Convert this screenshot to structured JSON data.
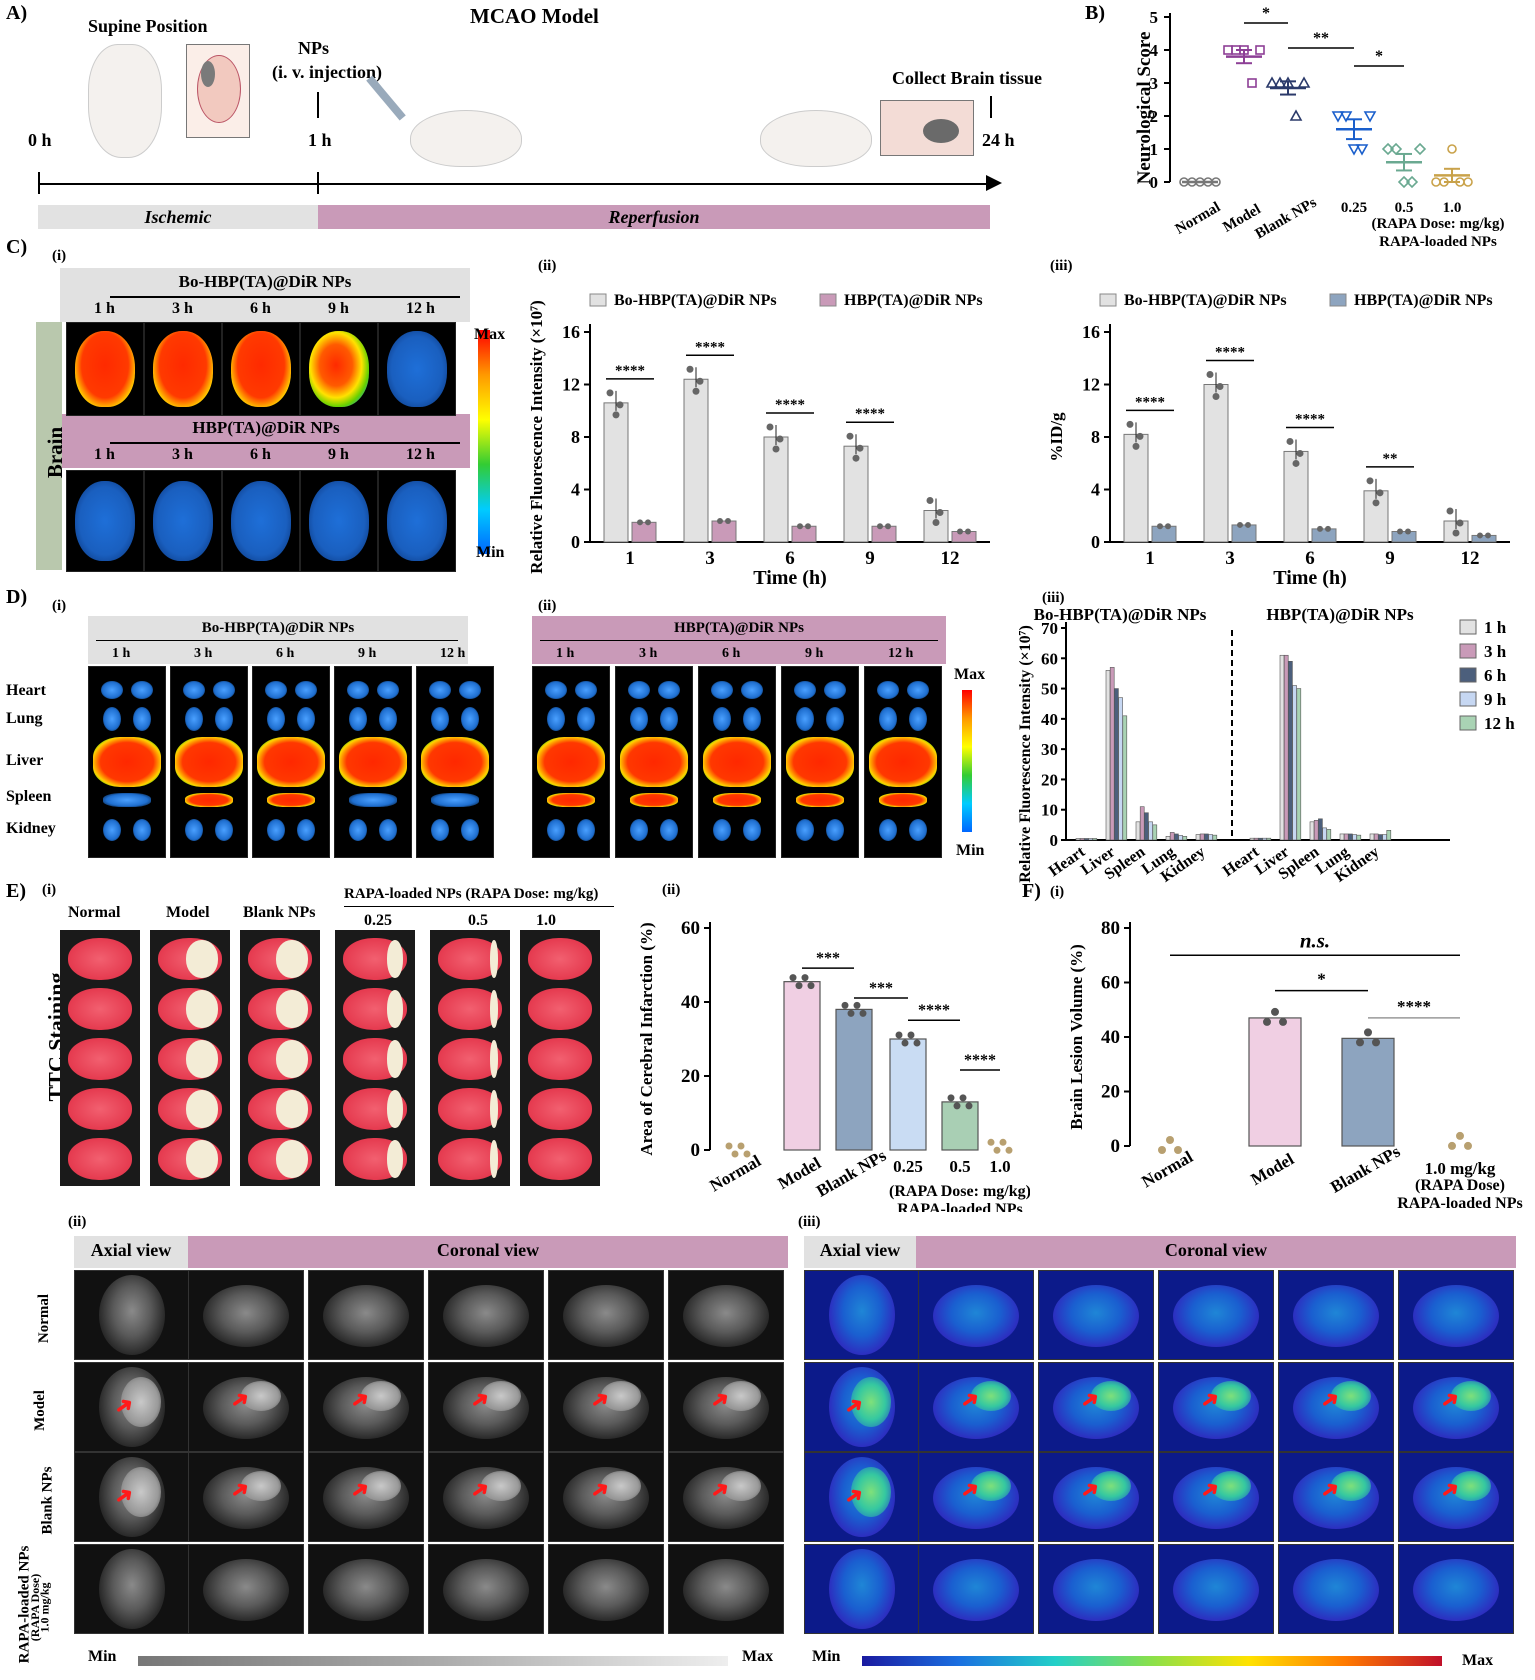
{
  "panelA": {
    "label": "A)",
    "title": "MCAO Model",
    "supine": "Supine Position",
    "nps": "NPs",
    "injection": "(i. v. injection)",
    "collect": "Collect Brain tissue",
    "t0": "0 h",
    "t1": "1 h",
    "t24": "24 h",
    "ischemic": "Ischemic",
    "reperfusion": "Reperfusion"
  },
  "panelB": {
    "label": "B)",
    "ylabel": "Neurological Score",
    "categories": [
      "Normal",
      "Model",
      "Blank NPs",
      "0.25",
      "0.5",
      "1.0"
    ],
    "group_note": "(RAPA Dose: mg/kg)",
    "group_name": "RAPA-loaded NPs",
    "sig": [
      "*",
      "**",
      "*"
    ]
  },
  "panelC": {
    "label": "C)",
    "i": "(i)",
    "ii": "(ii)",
    "iii": "(iii)",
    "bo": "Bo-HBP(TA)@DiR NPs",
    "hbp": "HBP(TA)@DiR NPs",
    "times": [
      "1 h",
      "3 h",
      "6 h",
      "9 h",
      "12 h"
    ],
    "brain": "Brain",
    "max": "Max",
    "min": "Min",
    "ii_ylabel": "Relative Fluorescence Intensity (×10⁷)",
    "iii_ylabel": "%ID/g",
    "xlabel": "Time (h)"
  },
  "panelD": {
    "label": "D)",
    "i": "(i)",
    "ii": "(ii)",
    "iii": "(iii)",
    "organs": [
      "Heart",
      "Lung",
      "Liver",
      "Spleen",
      "Kidney"
    ],
    "legend": [
      "1 h",
      "3 h",
      "6 h",
      "9 h",
      "12 h"
    ],
    "ylabel": "Relative Fluorescence Intensity (×10⁷)",
    "max": "Max",
    "min": "Min"
  },
  "panelE": {
    "label": "E)",
    "i": "(i)",
    "ii": "(ii)",
    "groups": [
      "Normal",
      "Model",
      "Blank NPs"
    ],
    "rapa_header": "RAPA-loaded NPs (RAPA Dose: mg/kg)",
    "doses": [
      "0.25",
      "0.5",
      "1.0"
    ],
    "ttc": "TTC Staining",
    "ii_ylabel": "Area of Cerebral Infarction (%)",
    "categories": [
      "Normal",
      "Model",
      "Blank NPs",
      "0.25",
      "0.5",
      "1.0"
    ],
    "group_note": "(RAPA Dose: mg/kg)",
    "group_name": "RAPA-loaded NPs",
    "sig": [
      "***",
      "***",
      "****",
      "****"
    ]
  },
  "panelF": {
    "label": "F)",
    "i": "(i)",
    "ylabel": "Brain Lesion Volume (%)",
    "categories": [
      "Normal",
      "Model",
      "Blank NPs",
      "1.0 mg/kg"
    ],
    "dose_note": "(RAPA Dose)",
    "group_name": "RAPA-loaded NPs",
    "ns": "n.s.",
    "sig": [
      "*",
      "****"
    ],
    "ii": "(ii)",
    "iii": "(iii)",
    "axial": "Axial view",
    "coronal": "Coronal view",
    "rows": [
      "Normal",
      "Model",
      "Blank NPs",
      "RAPA-loaded NPs"
    ],
    "row4_sub": "(RAPA Dose)",
    "row4_sub2": "1.0 mg/kg",
    "min": "Min",
    "max": "Max"
  },
  "colors": {
    "pink": "#c99ab8",
    "grey": "#dcdcdc",
    "blue": "#8da4bf",
    "light_blue": "#c9dcf3",
    "green": "#9cc7a8",
    "gold": "#c9a24a",
    "purple": "#8d3f96"
  },
  "chart_data": [
    {
      "type": "scatter",
      "title": "",
      "ylabel": "Neurological Score",
      "categories": [
        "Normal",
        "Model",
        "Blank NPs",
        "0.25",
        "0.5",
        "1.0"
      ],
      "ylim": [
        0,
        5
      ],
      "means": [
        0,
        3.8,
        2.85,
        1.6,
        0.6,
        0.2
      ],
      "sem": [
        0,
        0.2,
        0.2,
        0.3,
        0.25,
        0.2
      ],
      "series": [
        {
          "name": "",
          "values": [
            [
              0,
              0,
              0,
              0,
              0
            ],
            [
              4,
              4,
              4,
              3,
              4
            ],
            [
              3,
              3,
              3,
              2,
              3
            ],
            [
              2,
              2,
              1,
              1,
              2
            ],
            [
              1,
              1,
              0,
              0,
              1
            ],
            [
              0,
              0,
              1,
              0,
              0
            ]
          ]
        }
      ]
    },
    {
      "type": "bar",
      "ylabel": "Relative Fluorescence Intensity (×10⁷)",
      "xlabel": "Time (h)",
      "categories": [
        "1",
        "3",
        "6",
        "9",
        "12"
      ],
      "ylim": [
        0,
        16
      ],
      "series": [
        {
          "name": "Bo-HBP(TA)@DiR NPs",
          "values": [
            10.6,
            12.4,
            8.0,
            7.3,
            2.4
          ]
        },
        {
          "name": "HBP(TA)@DiR NPs",
          "values": [
            1.5,
            1.6,
            1.2,
            1.2,
            0.8
          ]
        }
      ],
      "sig": [
        "****",
        "****",
        "****",
        "****"
      ]
    },
    {
      "type": "bar",
      "ylabel": "%ID/g",
      "xlabel": "Time (h)",
      "categories": [
        "1",
        "3",
        "6",
        "9",
        "12"
      ],
      "ylim": [
        0,
        16
      ],
      "series": [
        {
          "name": "Bo-HBP(TA)@DiR NPs",
          "values": [
            8.2,
            12.0,
            6.9,
            3.9,
            1.6
          ]
        },
        {
          "name": "HBP(TA)@DiR NPs",
          "values": [
            1.2,
            1.3,
            1.0,
            0.8,
            0.5
          ]
        }
      ],
      "sig": [
        "****",
        "****",
        "****",
        "**"
      ]
    },
    {
      "type": "bar",
      "ylabel": "Relative Fluorescence Intensity (×10⁷)",
      "categories": [
        "Heart",
        "Liver",
        "Spleen",
        "Lung",
        "Kidney"
      ],
      "ylim": [
        0,
        70
      ],
      "groups": [
        "Bo-HBP(TA)@DiR NPs",
        "HBP(TA)@DiR NPs"
      ],
      "series": [
        {
          "name": "1 h",
          "values": [
            [
              0.5,
              56,
              6,
              1.2,
              1.8
            ],
            [
              0.6,
              61,
              6,
              2,
              2
            ]
          ]
        },
        {
          "name": "3 h",
          "values": [
            [
              0.5,
              57,
              11,
              2.5,
              2
            ],
            [
              0.6,
              61,
              6.5,
              2,
              2
            ]
          ]
        },
        {
          "name": "6 h",
          "values": [
            [
              0.5,
              50,
              9,
              2,
              2
            ],
            [
              0.6,
              59,
              7,
              2,
              1.8
            ]
          ]
        },
        {
          "name": "9 h",
          "values": [
            [
              0.5,
              47,
              6,
              1.5,
              1.8
            ],
            [
              0.6,
              51,
              4,
              1.8,
              1.8
            ]
          ]
        },
        {
          "name": "12 h",
          "values": [
            [
              0.5,
              41,
              5,
              1.2,
              1.6
            ],
            [
              0.6,
              50,
              3.5,
              1.6,
              3.2
            ]
          ]
        }
      ]
    },
    {
      "type": "bar",
      "ylabel": "Area of Cerebral Infarction (%)",
      "categories": [
        "Normal",
        "Model",
        "Blank NPs",
        "0.25",
        "0.5",
        "1.0"
      ],
      "ylim": [
        0,
        60
      ],
      "values": [
        0,
        45.5,
        38.0,
        30.0,
        13.0,
        1.0
      ],
      "sig": [
        "***",
        "***",
        "****",
        "****"
      ]
    },
    {
      "type": "bar",
      "ylabel": "Brain Lesion Volume (%)",
      "categories": [
        "Normal",
        "Model",
        "Blank NPs",
        "1.0 mg/kg"
      ],
      "ylim": [
        0,
        80
      ],
      "values": [
        0,
        47,
        39.5,
        1.5
      ],
      "sig": [
        "n.s.",
        "*",
        "****"
      ]
    }
  ]
}
